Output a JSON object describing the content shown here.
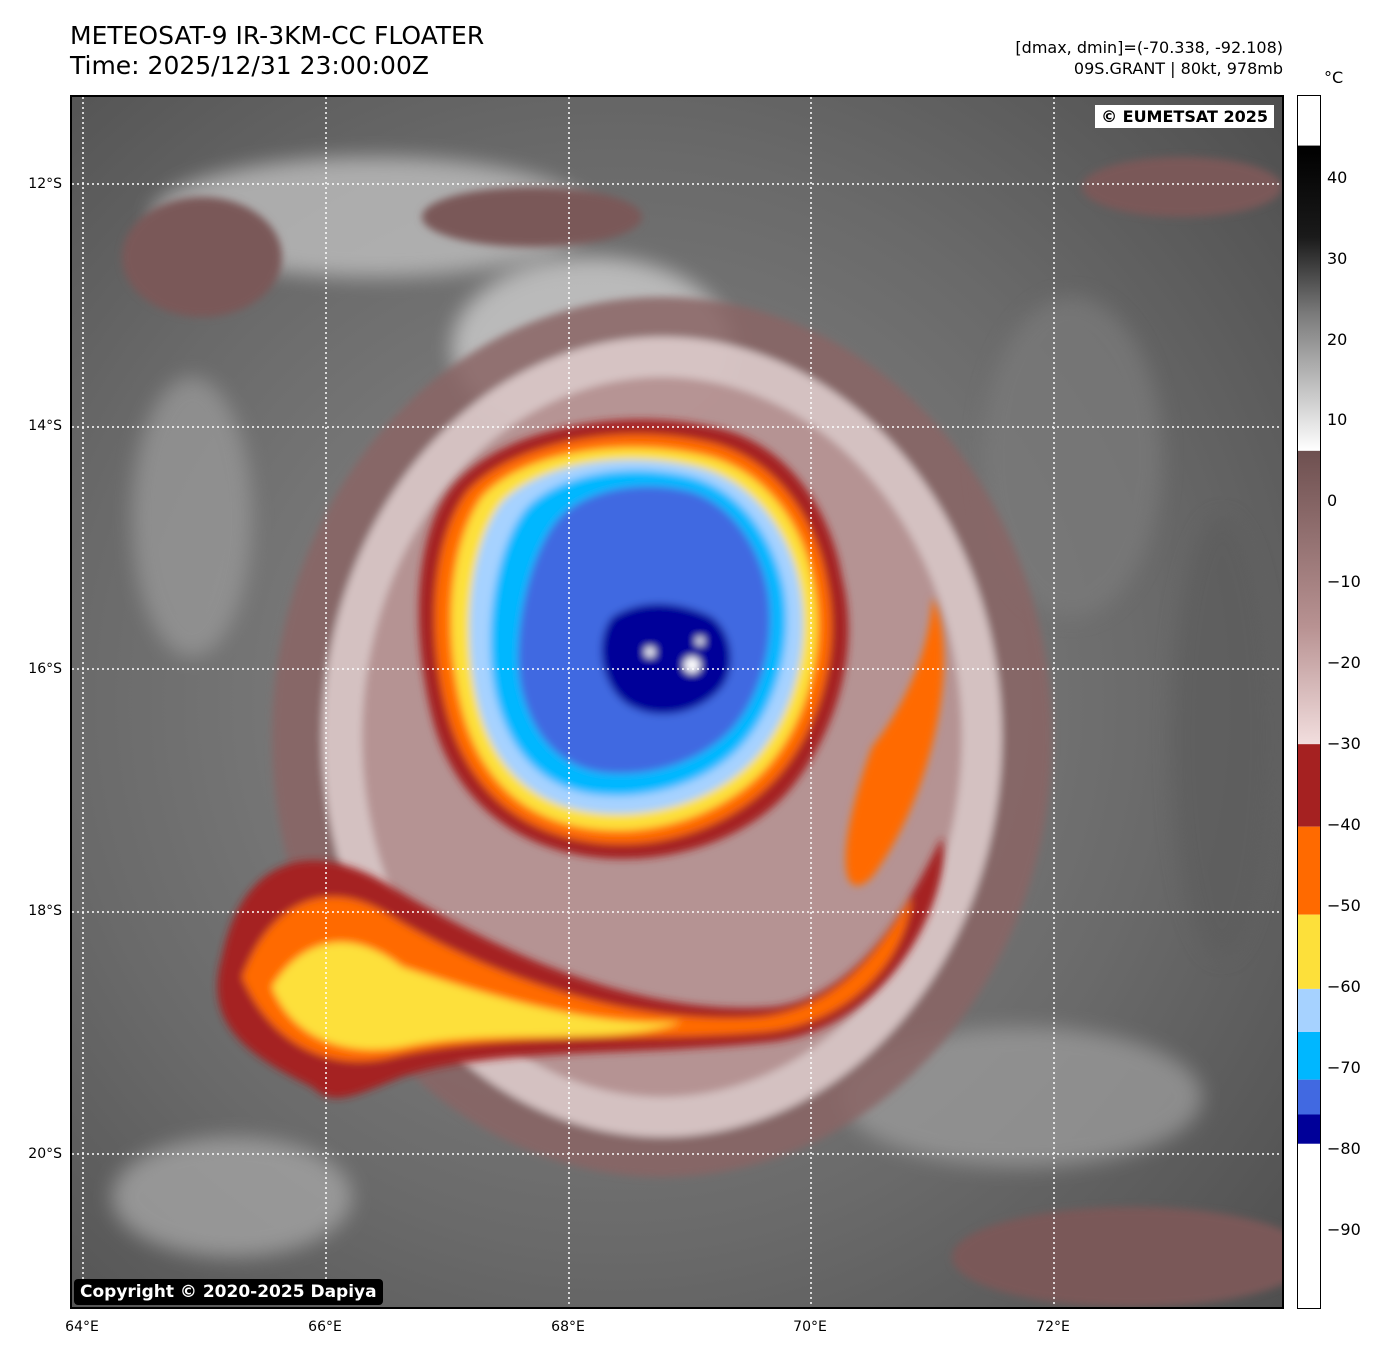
{
  "header": {
    "title_line1": "METEOSAT-9 IR-3KM-CC FLOATER",
    "title_line2": "Time: 2025/12/31 23:00:00Z",
    "range_text": "[dmax, dmin]=(-70.338, -92.108)",
    "storm_text": "09S.GRANT | 80kt, 978mb"
  },
  "map": {
    "watermark": "© EUMETSAT 2025",
    "copyright": "Copyright © 2020-2025 Dapiya",
    "lat_labels": [
      "12°S",
      "14°S",
      "16°S",
      "18°S",
      "20°S"
    ],
    "lon_labels": [
      "64°E",
      "66°E",
      "68°E",
      "70°E",
      "72°E"
    ],
    "gridlines": true
  },
  "colorbar": {
    "unit": "°C",
    "tick_labels": [
      "40",
      "30",
      "20",
      "10",
      "0",
      "−10",
      "−20",
      "−30",
      "−40",
      "−50",
      "−60",
      "−70",
      "−80",
      "−90"
    ],
    "segments": [
      {
        "from": 8,
        "to": -32,
        "color": "#7a5858"
      },
      {
        "from": -32,
        "to": -43,
        "color": "#a52121"
      },
      {
        "from": -43,
        "to": -55,
        "color": "#ff6a00"
      },
      {
        "from": -55,
        "to": -65,
        "color": "#fde03a"
      },
      {
        "from": -65,
        "to": -71,
        "color": "#a6d2ff"
      },
      {
        "from": -71,
        "to": -77,
        "color": "#00b7ff"
      },
      {
        "from": -77,
        "to": -82,
        "color": "#4169e1"
      },
      {
        "from": -82,
        "to": -86,
        "color": "#000099"
      },
      {
        "from": -86,
        "to": -100,
        "color": "#ffffff"
      }
    ]
  }
}
